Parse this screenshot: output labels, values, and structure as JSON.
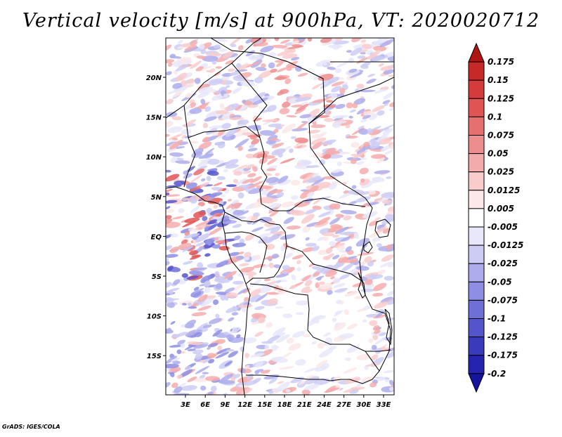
{
  "title": "Vertical velocity [m/s] at 900hPa, VT: 2020020712",
  "credit": "GrADS: IGES/COLA",
  "map": {
    "lat_labels": [
      "20N",
      "15N",
      "10N",
      "5N",
      "EQ",
      "5S",
      "10S",
      "15S"
    ],
    "lon_labels": [
      "3E",
      "6E",
      "9E",
      "12E",
      "15E",
      "18E",
      "21E",
      "24E",
      "27E",
      "30E",
      "33E"
    ]
  },
  "colorbar": {
    "labels": [
      "0.175",
      "0.15",
      "0.125",
      "0.1",
      "0.075",
      "0.05",
      "0.025",
      "0.0125",
      "0.005",
      "-0.005",
      "-0.0125",
      "-0.025",
      "-0.05",
      "-0.075",
      "-0.1",
      "-0.125",
      "-0.175",
      "-0.2"
    ],
    "colors": [
      "#b01515",
      "#c72828",
      "#d43c3c",
      "#e05454",
      "#e66f6f",
      "#ee8d8d",
      "#f4abab",
      "#f9cccc",
      "#fce8e8",
      "#ffffff",
      "#e8e8fa",
      "#ccccf4",
      "#adadec",
      "#8e8ee4",
      "#6f6fd8",
      "#5454cc",
      "#3a3abd",
      "#2424b0",
      "#14149c"
    ]
  }
}
